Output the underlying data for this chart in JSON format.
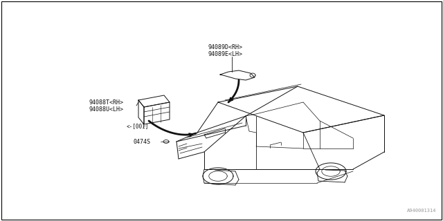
{
  "bg_color": "#ffffff",
  "border_color": "#000000",
  "line_color": "#111111",
  "text_color": "#111111",
  "figure_width": 6.4,
  "figure_height": 3.2,
  "dpi": 100,
  "watermark": "A940001314",
  "labels": {
    "part1_line1": "94088T<RH>",
    "part1_line2": "94088U<LH>",
    "part1_sub": "<-[001]",
    "part2": "0474S",
    "part3_line1": "94089D<RH>",
    "part3_line2": "94089E<LH>"
  }
}
